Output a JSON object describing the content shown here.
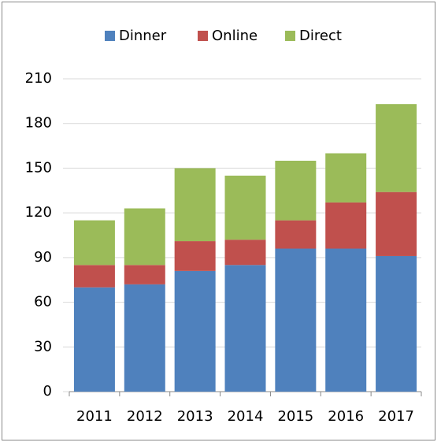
{
  "chart_data": {
    "type": "stacked_bar",
    "categories": [
      "2011",
      "2012",
      "2013",
      "2014",
      "2015",
      "2016",
      "2017"
    ],
    "series": [
      {
        "name": "Dinner",
        "color": "#4f81bd",
        "values": [
          70,
          72,
          81,
          85,
          96,
          96,
          91
        ]
      },
      {
        "name": "Online",
        "color": "#c0504d",
        "values": [
          15,
          13,
          20,
          17,
          19,
          31,
          43
        ]
      },
      {
        "name": "Direct",
        "color": "#9bbb59",
        "values": [
          30,
          38,
          49,
          43,
          40,
          33,
          59
        ]
      }
    ],
    "ylim": [
      0,
      210
    ],
    "yticks": [
      0,
      30,
      60,
      90,
      120,
      150,
      180,
      210
    ],
    "grid": true,
    "legend": "top"
  }
}
